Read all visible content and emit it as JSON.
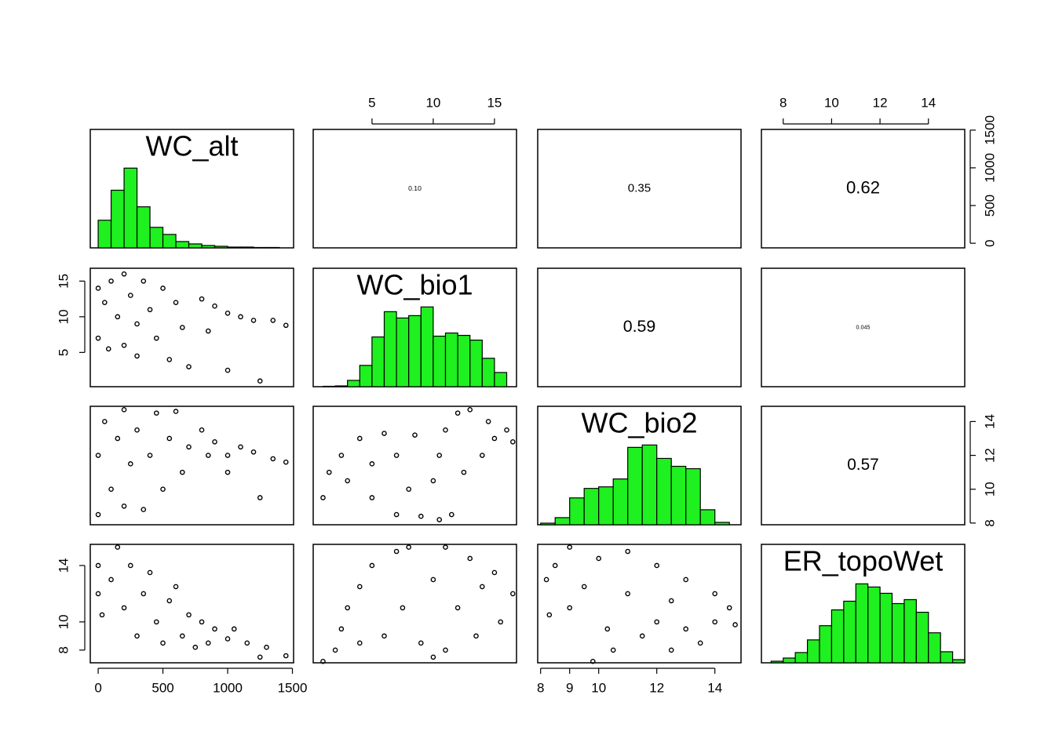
{
  "chart_data": {
    "type": "scatter_matrix",
    "hist_color": "#1ff01f",
    "hist_ylim": [
      0,
      150
    ],
    "variables": [
      {
        "name": "WC_alt",
        "lim": [
          -61,
          1509
        ],
        "xticks": [
          0,
          500,
          1000,
          1500
        ],
        "yticks": [
          0,
          500,
          1000,
          1500
        ],
        "bins": [
          0,
          100,
          200,
          300,
          400,
          500,
          600,
          700,
          800,
          900,
          1000,
          1100,
          1200,
          1300,
          1400
        ],
        "counts": [
          35,
          73,
          101,
          52,
          26,
          17,
          8,
          5,
          3,
          2,
          1,
          1,
          0.5,
          0.5
        ]
      },
      {
        "name": "WC_bio1",
        "lim": [
          0.2,
          16.8
        ],
        "xticks": [
          5,
          10,
          15
        ],
        "yticks": [
          5,
          10,
          15
        ],
        "bins": [
          1,
          2,
          3,
          4,
          5,
          6,
          7,
          8,
          9,
          10,
          11,
          12,
          13,
          14,
          15,
          16
        ],
        "counts": [
          0.5,
          1,
          8,
          27,
          63,
          95,
          87,
          90,
          101,
          64,
          68,
          65,
          59,
          36,
          18
        ]
      },
      {
        "name": "WC_bio2",
        "lim": [
          7.9,
          14.9
        ],
        "xticks": [
          8,
          9,
          10,
          12,
          14
        ],
        "yticks": [
          8,
          10,
          12,
          14
        ],
        "bins": [
          8,
          8.5,
          9,
          9.5,
          10,
          10.5,
          11,
          11.5,
          12,
          12.5,
          13,
          13.5,
          14,
          14.5
        ],
        "counts": [
          2,
          9,
          34,
          46,
          48,
          58,
          98,
          101,
          84,
          74,
          71,
          19,
          3
        ]
      },
      {
        "name": "ER_topoWet",
        "lim": [
          7.1,
          15.5
        ],
        "xticks": [
          8,
          10,
          12,
          14
        ],
        "yticks": [
          8,
          10,
          14
        ],
        "bins": [
          7.5,
          8,
          8.5,
          9,
          9.5,
          10,
          10.5,
          11,
          11.5,
          12,
          12.5,
          13,
          13.5,
          14,
          14.5,
          15,
          15.5
        ],
        "counts": [
          2,
          6,
          13,
          29,
          47,
          67,
          78,
          100,
          96,
          88,
          75,
          80,
          64,
          38,
          14,
          4
        ]
      }
    ],
    "correlations": [
      0.1,
      0.35,
      0.62,
      0.59,
      0.045,
      0.57
    ],
    "correlation_labels": [
      "0.10",
      "0.35",
      "0.62",
      "0.59",
      "0.045",
      "0.57"
    ],
    "panels": [
      {
        "x": [
          0,
          0,
          50,
          80,
          100,
          150,
          200,
          200,
          250,
          300,
          300,
          350,
          400,
          450,
          500,
          550,
          600,
          650,
          700,
          800,
          850,
          900,
          1000,
          1000,
          1100,
          1200,
          1250,
          1350,
          1450
        ],
        "y": [
          14,
          7,
          12,
          5.5,
          15,
          10,
          16,
          6,
          13,
          9,
          4.5,
          15,
          11,
          7,
          14,
          4,
          12,
          8.5,
          3,
          12.5,
          8,
          11.5,
          2.5,
          10.5,
          10,
          9.5,
          1,
          9.5,
          8.8
        ]
      },
      {
        "x": [
          0,
          0,
          50,
          100,
          150,
          200,
          200,
          250,
          300,
          350,
          400,
          450,
          500,
          550,
          600,
          650,
          700,
          800,
          850,
          900,
          1000,
          1000,
          1100,
          1200,
          1250,
          1350,
          1450
        ],
        "y": [
          8.5,
          12,
          14,
          10,
          13,
          14.7,
          9,
          11.5,
          13.5,
          8.8,
          12,
          14.5,
          10,
          13,
          14.6,
          11,
          12.5,
          13.5,
          12,
          12.8,
          12,
          11,
          12.5,
          12.2,
          9.5,
          11.8,
          11.6
        ]
      },
      {
        "x": [
          1,
          1.5,
          2.5,
          3,
          4,
          5,
          5,
          6,
          7,
          7,
          8,
          8.5,
          9,
          10,
          10.5,
          11,
          11.5,
          12,
          12.5,
          13,
          14,
          14.5,
          15,
          16,
          16.5,
          10.5
        ],
        "y": [
          9.5,
          11,
          12,
          10.5,
          13,
          11.5,
          9.5,
          13.3,
          8.5,
          12,
          10,
          13.2,
          8.4,
          10.5,
          12,
          13.5,
          8.5,
          14.5,
          11,
          14.7,
          12,
          14,
          13,
          13.5,
          12.8,
          8.2
        ]
      },
      {
        "x": [
          0,
          0,
          30,
          100,
          150,
          200,
          250,
          300,
          350,
          400,
          450,
          500,
          550,
          600,
          650,
          700,
          750,
          800,
          850,
          900,
          1000,
          1050,
          1150,
          1250,
          1300,
          1450
        ],
        "y": [
          12,
          14,
          10.5,
          13,
          15.3,
          11,
          14,
          9,
          12,
          13.5,
          10,
          8.5,
          11.5,
          12.5,
          9,
          10.5,
          8.2,
          10,
          8.5,
          9.5,
          8.8,
          9.5,
          8.5,
          7.5,
          8.2,
          7.6
        ]
      },
      {
        "x": [
          1,
          2,
          2.5,
          3,
          4,
          4,
          5,
          6,
          7,
          7.5,
          8,
          9,
          10,
          11,
          11,
          12,
          13,
          13.5,
          14,
          15,
          15.5,
          16.5,
          10
        ],
        "y": [
          7.2,
          8,
          9.5,
          11,
          12.5,
          8.5,
          14,
          9,
          15,
          11,
          15.3,
          8.5,
          13,
          15.3,
          8,
          11,
          14.5,
          9,
          12.5,
          13.5,
          10,
          12,
          7.5
        ]
      },
      {
        "x": [
          8.2,
          8.3,
          8.5,
          9,
          9,
          9.5,
          9.8,
          10,
          10.3,
          10.5,
          11,
          11,
          11.5,
          12,
          12,
          12.5,
          12.5,
          13,
          13,
          13.5,
          14,
          14,
          14.5,
          14.7
        ],
        "y": [
          13,
          10.5,
          14,
          15.3,
          11,
          12.5,
          7.2,
          14.5,
          9.5,
          8,
          15,
          12,
          9,
          14,
          10,
          8,
          11.5,
          13,
          9.5,
          8.5,
          12,
          10,
          11,
          9.8
        ]
      }
    ]
  }
}
